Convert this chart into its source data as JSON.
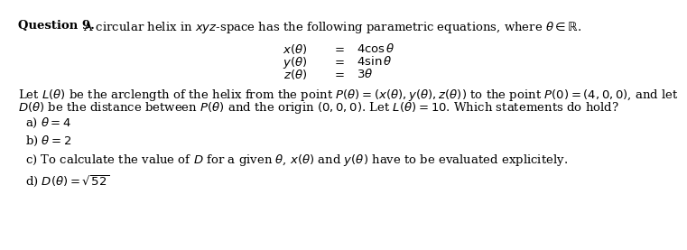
{
  "bg_color": "#ffffff",
  "text_color": "#000000",
  "font_size": 9.5,
  "title_bold": "Question 9.",
  "title_rest": " A circular helix in $xyz$-space has the following parametric equations, where $\\theta \\in \\mathbb{R}$.",
  "eq1_left": "$x(\\theta)$",
  "eq1_mid": "$=$",
  "eq1_right": "$4\\cos\\theta$",
  "eq2_left": "$y(\\theta)$",
  "eq2_mid": "$=$",
  "eq2_right": "$4\\sin\\theta$",
  "eq3_left": "$z(\\theta)$",
  "eq3_mid": "$=$",
  "eq3_right": "$3\\theta$",
  "body1": "Let $L(\\theta)$ be the arclength of the helix from the point $P(\\theta) = (x(\\theta), y(\\theta), z(\\theta))$ to the point $P(0) = (4, 0, 0)$, and let",
  "body2": "$D(\\theta)$ be the distance between $P(\\theta)$ and the origin $(0, 0, 0)$. Let $L(\\theta) = 10$. Which statements do hold?",
  "opt_a": "a) $\\theta = 4$",
  "opt_b": "b) $\\theta = 2$",
  "opt_c": "c) To calculate the value of $D$ for a given $\\theta$, $x(\\theta)$ and $y(\\theta)$ have to be evaluated explicitely.",
  "opt_d": "d) $D(\\theta) = \\sqrt{52}$"
}
